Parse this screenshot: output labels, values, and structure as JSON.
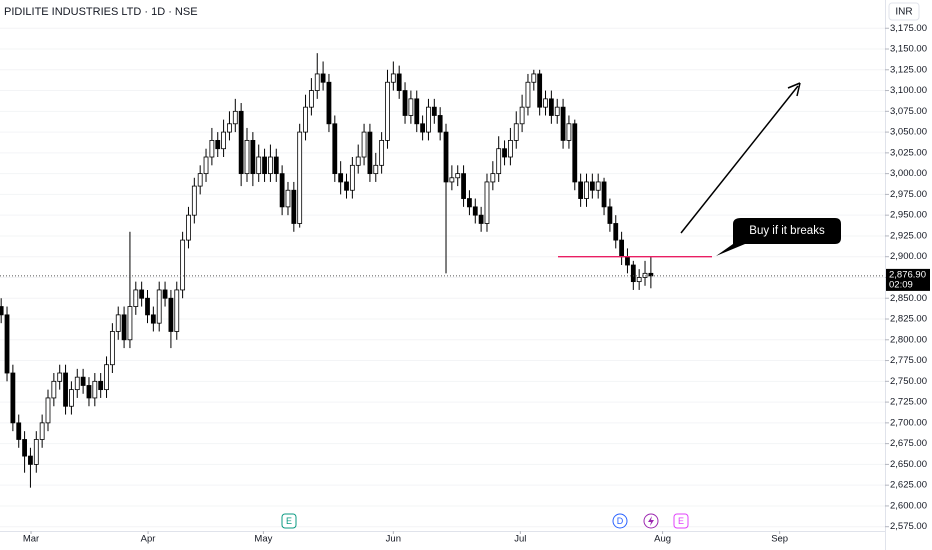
{
  "chart_data": {
    "type": "candlestick",
    "title": "PIDILITE INDUSTRIES LTD · 1D · NSE",
    "currency": "INR",
    "up_color": "#ffffff",
    "down_color": "#000000",
    "grid": true,
    "xlim": [
      -0.2,
      151
    ],
    "xticks": [
      {
        "value": 5.1,
        "label": "Mar"
      },
      {
        "value": 25.1,
        "label": "Apr"
      },
      {
        "value": 44.8,
        "label": "May"
      },
      {
        "value": 67,
        "label": "Jun"
      },
      {
        "value": 88.7,
        "label": "Jul"
      },
      {
        "value": 113,
        "label": "Aug"
      },
      {
        "value": 133,
        "label": "Sep"
      }
    ],
    "ylim": [
      2559,
      3209
    ],
    "yticks": [
      {
        "value": 2575,
        "label": "2,575.00"
      },
      {
        "value": 2600,
        "label": "2,600.00"
      },
      {
        "value": 2625,
        "label": "2,625.00"
      },
      {
        "value": 2650,
        "label": "2,650.00"
      },
      {
        "value": 2675,
        "label": "2,675.00"
      },
      {
        "value": 2700,
        "label": "2,700.00"
      },
      {
        "value": 2725,
        "label": "2,725.00"
      },
      {
        "value": 2750,
        "label": "2,750.00"
      },
      {
        "value": 2775,
        "label": "2,775.00"
      },
      {
        "value": 2800,
        "label": "2,800.00"
      },
      {
        "value": 2825,
        "label": "2,825.00"
      },
      {
        "value": 2850,
        "label": "2,850.00"
      },
      {
        "value": 2875,
        "label": "2,875.00"
      },
      {
        "value": 2900,
        "label": "2,900.00"
      },
      {
        "value": 2925,
        "label": "2,925.00"
      },
      {
        "value": 2950,
        "label": "2,950.00"
      },
      {
        "value": 2975,
        "label": "2,975.00"
      },
      {
        "value": 3000,
        "label": "3,000.00"
      },
      {
        "value": 3025,
        "label": "3,025.00"
      },
      {
        "value": 3050,
        "label": "3,050.00"
      },
      {
        "value": 3075,
        "label": "3,075.00"
      },
      {
        "value": 3100,
        "label": "3,100.00"
      },
      {
        "value": 3125,
        "label": "3,125.00"
      },
      {
        "value": 3150,
        "label": "3,150.00"
      },
      {
        "value": 3175,
        "label": "3,175.00"
      }
    ],
    "open": [
      2840,
      2830,
      2760,
      2700,
      2680,
      2660,
      2650,
      2680,
      2700,
      2730,
      2750,
      2760,
      2720,
      2740,
      2755,
      2745,
      2730,
      2750,
      2740,
      2770,
      2810,
      2830,
      2800,
      2840,
      2860,
      2850,
      2830,
      2820,
      2860,
      2850,
      2810,
      2860,
      2920,
      2950,
      2985,
      3000,
      3020,
      3040,
      3030,
      3050,
      3060,
      3075,
      3000,
      3040,
      3000,
      3020,
      3000,
      3020,
      3000,
      2960,
      2980,
      2940,
      3050,
      3080,
      3100,
      3120,
      3110,
      3060,
      3000,
      2990,
      2980,
      3010,
      3020,
      3050,
      3000,
      3010,
      3040,
      3110,
      3120,
      3100,
      3070,
      3090,
      3060,
      3050,
      3080,
      3070,
      3050,
      2990,
      2995,
      3000,
      2970,
      2960,
      2950,
      2940,
      2990,
      3000,
      3030,
      3020,
      3040,
      3060,
      3080,
      3110,
      3120,
      3080,
      3090,
      3070,
      3080,
      3040,
      3060,
      2990,
      2970,
      2990,
      2980,
      2990,
      2960,
      2940,
      2920,
      2900,
      2890,
      2870,
      2875,
      2880
    ],
    "high": [
      2850,
      2840,
      2770,
      2710,
      2690,
      2670,
      2690,
      2710,
      2740,
      2760,
      2770,
      2770,
      2750,
      2765,
      2765,
      2755,
      2760,
      2760,
      2780,
      2820,
      2840,
      2840,
      2930,
      2870,
      2870,
      2860,
      2840,
      2870,
      2870,
      2860,
      2870,
      2930,
      2960,
      2995,
      3010,
      3030,
      3055,
      3050,
      3065,
      3075,
      3090,
      3085,
      3055,
      3050,
      3035,
      3030,
      3035,
      3030,
      3010,
      2990,
      2990,
      3060,
      3095,
      3115,
      3145,
      3135,
      3120,
      3070,
      3015,
      3000,
      3020,
      3035,
      3060,
      3060,
      3025,
      3050,
      3125,
      3135,
      3130,
      3110,
      3100,
      3100,
      3070,
      3090,
      3090,
      3080,
      3060,
      3010,
      3010,
      3010,
      2980,
      2970,
      2960,
      3000,
      3015,
      3045,
      3040,
      3055,
      3075,
      3095,
      3120,
      3125,
      3125,
      3100,
      3100,
      3090,
      3090,
      3070,
      3065,
      3000,
      3000,
      3000,
      3000,
      2995,
      2970,
      2950,
      2930,
      2910,
      2895,
      2885,
      2895,
      2900
    ],
    "low": [
      2820,
      2750,
      2690,
      2670,
      2640,
      2622,
      2640,
      2670,
      2690,
      2720,
      2740,
      2710,
      2710,
      2730,
      2735,
      2720,
      2720,
      2730,
      2730,
      2760,
      2800,
      2790,
      2790,
      2830,
      2840,
      2820,
      2810,
      2810,
      2840,
      2790,
      2800,
      2850,
      2910,
      2940,
      2975,
      2990,
      3010,
      3020,
      3020,
      3040,
      3050,
      2985,
      2990,
      2985,
      2990,
      2990,
      2990,
      2990,
      2950,
      2950,
      2930,
      2935,
      3040,
      3070,
      3090,
      3100,
      3050,
      2990,
      2975,
      2970,
      2970,
      3000,
      3010,
      2990,
      2990,
      3000,
      3030,
      3100,
      3090,
      3060,
      3060,
      3050,
      3040,
      3040,
      3060,
      3040,
      2880,
      2980,
      2985,
      2960,
      2950,
      2940,
      2930,
      2930,
      2980,
      2990,
      3010,
      3010,
      3030,
      3050,
      3070,
      3100,
      3070,
      3070,
      3060,
      3060,
      3030,
      3030,
      2980,
      2960,
      2960,
      2970,
      2970,
      2950,
      2930,
      2910,
      2890,
      2880,
      2860,
      2860,
      2865,
      2862
    ],
    "close": [
      2830,
      2760,
      2700,
      2680,
      2660,
      2650,
      2680,
      2700,
      2730,
      2750,
      2760,
      2720,
      2740,
      2755,
      2745,
      2730,
      2750,
      2740,
      2770,
      2810,
      2830,
      2800,
      2840,
      2860,
      2850,
      2830,
      2820,
      2860,
      2850,
      2810,
      2860,
      2920,
      2950,
      2985,
      3000,
      3020,
      3040,
      3030,
      3050,
      3060,
      3075,
      3000,
      3040,
      3000,
      3020,
      3000,
      3020,
      3000,
      2960,
      2980,
      2940,
      3050,
      3080,
      3100,
      3120,
      3110,
      3060,
      3000,
      2990,
      2980,
      3010,
      3020,
      3050,
      3000,
      3010,
      3040,
      3110,
      3120,
      3100,
      3070,
      3090,
      3060,
      3050,
      3080,
      3070,
      3050,
      2990,
      2995,
      3000,
      2970,
      2960,
      2950,
      2940,
      2990,
      3000,
      3030,
      3020,
      3040,
      3060,
      3080,
      3110,
      3120,
      3080,
      3090,
      3070,
      3080,
      3040,
      3060,
      2990,
      2970,
      2990,
      2980,
      2990,
      2960,
      2940,
      2920,
      2900,
      2890,
      2870,
      2875,
      2880,
      2876.9
    ],
    "last_price": {
      "value": 2876.9,
      "label": "2,876.90"
    },
    "countdown": "02:09",
    "level_line": {
      "value": 2900,
      "color": "#e91e63"
    },
    "annotation": "Buy if it breaks",
    "events": [
      "E",
      "D",
      "E"
    ]
  }
}
